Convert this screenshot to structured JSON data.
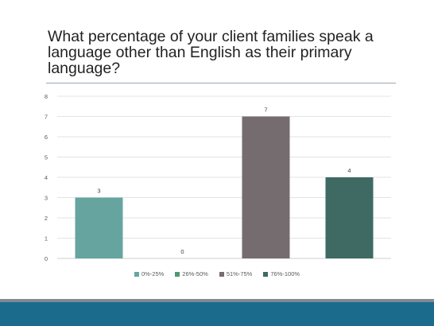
{
  "slide": {
    "title": "What percentage of your client families speak a language other than English as their primary language?"
  },
  "chart_data": {
    "type": "bar",
    "categories": [
      "0%-25%",
      "26%-50%",
      "51%-75%",
      "76%-100%"
    ],
    "values": [
      3,
      0,
      7,
      4
    ],
    "colors": [
      "#66a59f",
      "#4c9a72",
      "#746c6f",
      "#3e6a63"
    ],
    "ylim": [
      0,
      8
    ],
    "yticks": [
      0,
      1,
      2,
      3,
      4,
      5,
      6,
      7,
      8
    ],
    "grid": true,
    "legend_position": "bottom",
    "data_labels": [
      "3",
      "0",
      "7",
      "4"
    ]
  },
  "theme": {
    "footer_color": "#1b6b8c",
    "footer_accent": "#7f8a93",
    "grid_color": "#e3e3e3"
  }
}
